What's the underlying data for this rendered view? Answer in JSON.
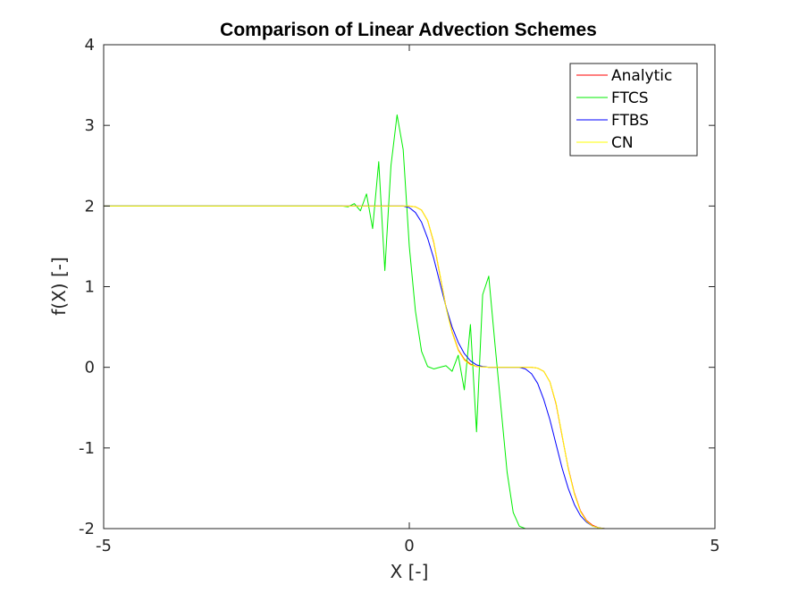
{
  "chart_data": {
    "type": "line",
    "title": "Comparison of Linear Advection Schemes",
    "xlabel": "X [-]",
    "ylabel": "f(X) [-]",
    "xlim": [
      -5,
      5
    ],
    "ylim": [
      -2,
      4
    ],
    "xticks": [
      -5,
      0,
      5
    ],
    "yticks": [
      -2,
      -1,
      0,
      1,
      2,
      3,
      4
    ],
    "grid": false,
    "legend_position": "top-right",
    "series": [
      {
        "name": "Analytic",
        "color": "#ff0000",
        "x": [
          -5,
          -1,
          -0.1,
          0,
          0.1,
          0.2,
          0.3,
          0.4,
          0.5,
          0.6,
          0.7,
          0.8,
          0.9,
          1.0,
          1.1,
          1.3,
          1.6,
          2.0,
          2.1,
          2.2,
          2.3,
          2.4,
          2.5,
          2.6,
          2.7,
          2.8,
          2.9,
          3.0,
          3.1,
          3.2,
          3.4,
          5
        ],
        "y": [
          2,
          2,
          2,
          2,
          1.99,
          1.95,
          1.82,
          1.55,
          1.15,
          0.75,
          0.44,
          0.22,
          0.1,
          0.04,
          0.01,
          0,
          0,
          0,
          -0.01,
          -0.05,
          -0.18,
          -0.45,
          -0.85,
          -1.25,
          -1.56,
          -1.78,
          -1.9,
          -1.96,
          -1.99,
          -2,
          -2,
          -2
        ]
      },
      {
        "name": "FTCS",
        "color": "#00ee00",
        "x": [
          -5,
          -1.3,
          -1.1,
          -1.0,
          -0.9,
          -0.8,
          -0.7,
          -0.6,
          -0.5,
          -0.4,
          -0.3,
          -0.2,
          -0.1,
          0.0,
          0.1,
          0.2,
          0.3,
          0.4,
          0.5,
          0.6,
          0.7,
          0.8,
          0.9,
          1.0,
          1.1,
          1.2,
          1.3,
          1.4,
          1.5,
          1.6,
          1.7,
          1.8,
          1.9,
          2.0,
          2.1,
          2.2,
          2.3,
          2.4,
          2.5,
          2.6,
          2.7,
          2.8,
          2.9,
          3.0,
          3.2,
          5
        ],
        "y": [
          2,
          2,
          2.0,
          1.99,
          2.03,
          1.94,
          2.15,
          1.72,
          2.55,
          1.2,
          2.5,
          3.13,
          2.7,
          1.5,
          0.7,
          0.2,
          0.01,
          -0.02,
          0,
          0.02,
          -0.05,
          0.15,
          -0.28,
          0.53,
          -0.8,
          0.9,
          1.13,
          0.3,
          -0.5,
          -1.3,
          -1.8,
          -1.97,
          -2.0,
          -2.0,
          -2,
          -2,
          -2,
          -2,
          -2,
          -2,
          -2,
          -2,
          -2,
          -2,
          -2,
          -2
        ]
      },
      {
        "name": "FTBS",
        "color": "#0000ff",
        "x": [
          -5,
          -1,
          -0.2,
          -0.1,
          0,
          0.1,
          0.2,
          0.3,
          0.4,
          0.5,
          0.6,
          0.7,
          0.8,
          0.9,
          1.0,
          1.1,
          1.2,
          1.3,
          1.5,
          1.8,
          1.9,
          2.0,
          2.1,
          2.2,
          2.3,
          2.4,
          2.5,
          2.6,
          2.7,
          2.8,
          2.9,
          3.0,
          3.1,
          3.2,
          3.3,
          3.5,
          5
        ],
        "y": [
          2,
          2,
          2,
          2,
          1.98,
          1.92,
          1.8,
          1.6,
          1.35,
          1.05,
          0.75,
          0.5,
          0.31,
          0.17,
          0.08,
          0.03,
          0.01,
          0,
          0,
          0,
          -0.02,
          -0.08,
          -0.2,
          -0.4,
          -0.65,
          -0.95,
          -1.25,
          -1.5,
          -1.7,
          -1.84,
          -1.92,
          -1.97,
          -1.99,
          -2,
          -2,
          -2,
          -2
        ]
      },
      {
        "name": "CN",
        "color": "#ffff00",
        "x": [
          -5,
          -1,
          -0.1,
          0,
          0.1,
          0.2,
          0.3,
          0.4,
          0.5,
          0.6,
          0.7,
          0.8,
          0.9,
          1.0,
          1.1,
          1.3,
          1.6,
          2.0,
          2.1,
          2.2,
          2.3,
          2.4,
          2.5,
          2.6,
          2.7,
          2.8,
          2.9,
          3.0,
          3.1,
          3.2,
          3.4,
          5
        ],
        "y": [
          2,
          2,
          2,
          2.0,
          1.99,
          1.95,
          1.82,
          1.56,
          1.16,
          0.74,
          0.43,
          0.21,
          0.09,
          0.03,
          0.01,
          0,
          0,
          0,
          -0.01,
          -0.05,
          -0.18,
          -0.44,
          -0.84,
          -1.26,
          -1.57,
          -1.79,
          -1.91,
          -1.97,
          -1.99,
          -2,
          -2,
          -2
        ]
      }
    ]
  }
}
